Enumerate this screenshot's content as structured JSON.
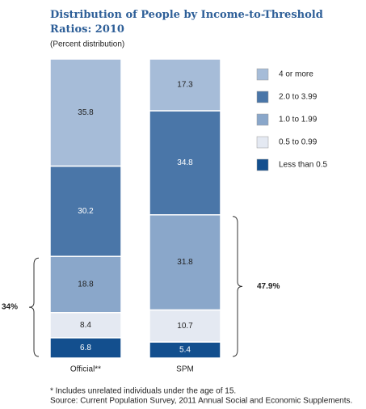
{
  "chart_data": {
    "type": "stacked-bar",
    "title": "Distribution of People by Income-to-Threshold Ratios: 2010",
    "subtitle": "(Percent distribution)",
    "categories": [
      "Official**",
      "SPM"
    ],
    "series": [
      {
        "name": "Less than 0.5",
        "color": "#134f8e",
        "values": [
          6.8,
          5.4
        ]
      },
      {
        "name": "0.5 to 0.99",
        "color": "#e4e9f2",
        "values": [
          8.4,
          10.7
        ]
      },
      {
        "name": "1.0 to 1.99",
        "color": "#8aa7ca",
        "values": [
          18.8,
          31.8
        ]
      },
      {
        "name": "2.0 to 3.99",
        "color": "#4a76a8",
        "values": [
          30.2,
          34.8
        ]
      },
      {
        "name": "4 or more",
        "color": "#a6bcd8",
        "values": [
          35.8,
          17.3
        ]
      }
    ],
    "ylim": [
      0,
      100
    ],
    "annotations": [
      "34%",
      "47.9%"
    ],
    "notes": [
      "* Includes unrelated individuals under the age of 15.",
      "Source: Current Population Survey, 2011 Annual Social and Economic Supplements."
    ]
  }
}
